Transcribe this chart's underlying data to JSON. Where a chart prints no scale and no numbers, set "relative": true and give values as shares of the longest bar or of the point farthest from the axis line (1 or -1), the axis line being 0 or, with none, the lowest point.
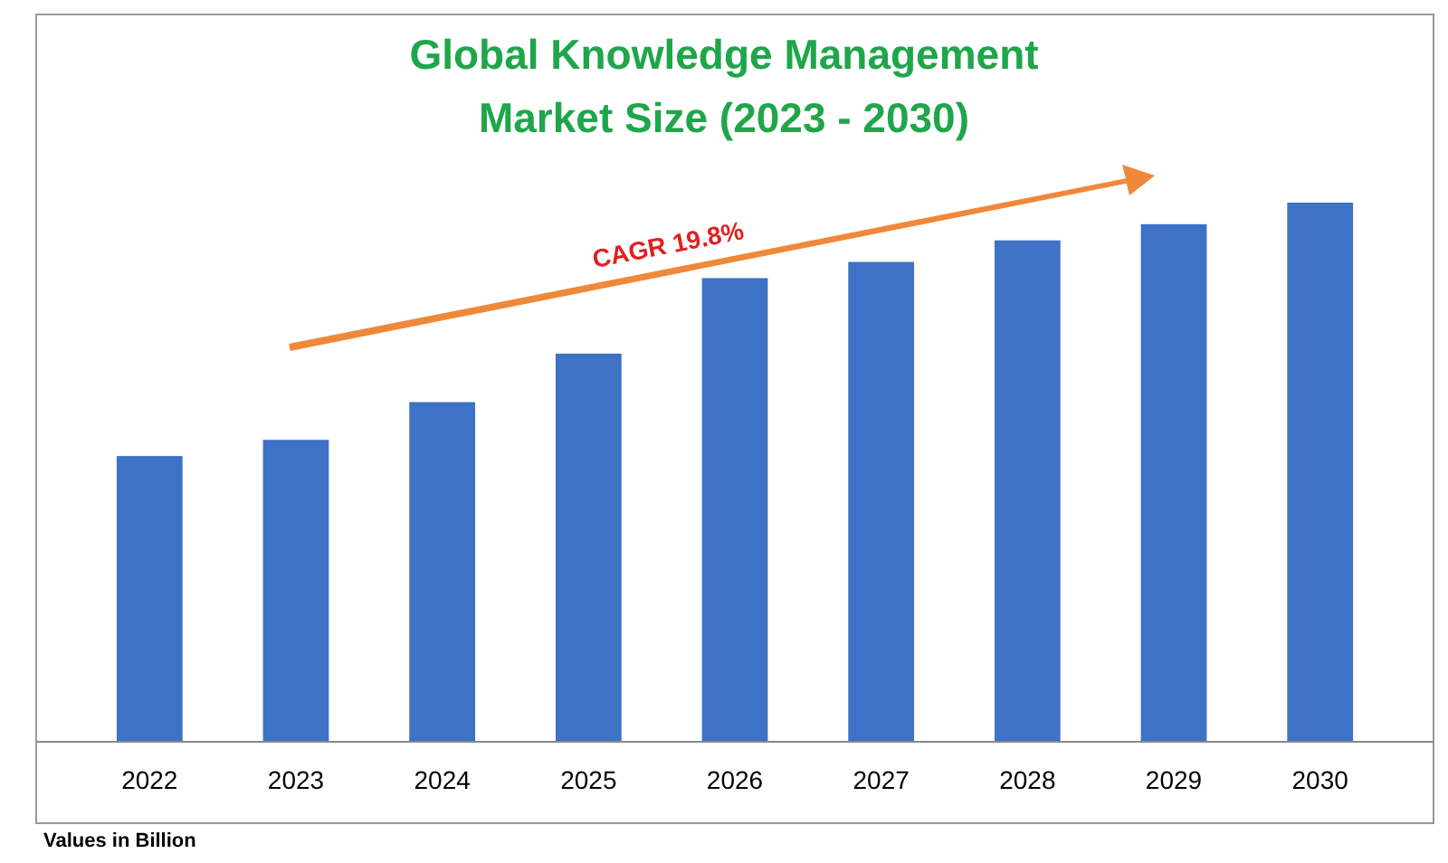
{
  "chart_data": {
    "type": "bar",
    "title": "Global Knowledge Management\nMarket Size (2023 - 2030)",
    "categories": [
      "2022",
      "2023",
      "2024",
      "2025",
      "2026",
      "2027",
      "2028",
      "2029",
      "2030"
    ],
    "values": [
      0.53,
      0.56,
      0.63,
      0.72,
      0.86,
      0.89,
      0.93,
      0.96,
      1
    ],
    "color": "#3d72c6",
    "relative": true,
    "annotations": [
      "CAGR 19.8%",
      "Values in Billion"
    ]
  }
}
